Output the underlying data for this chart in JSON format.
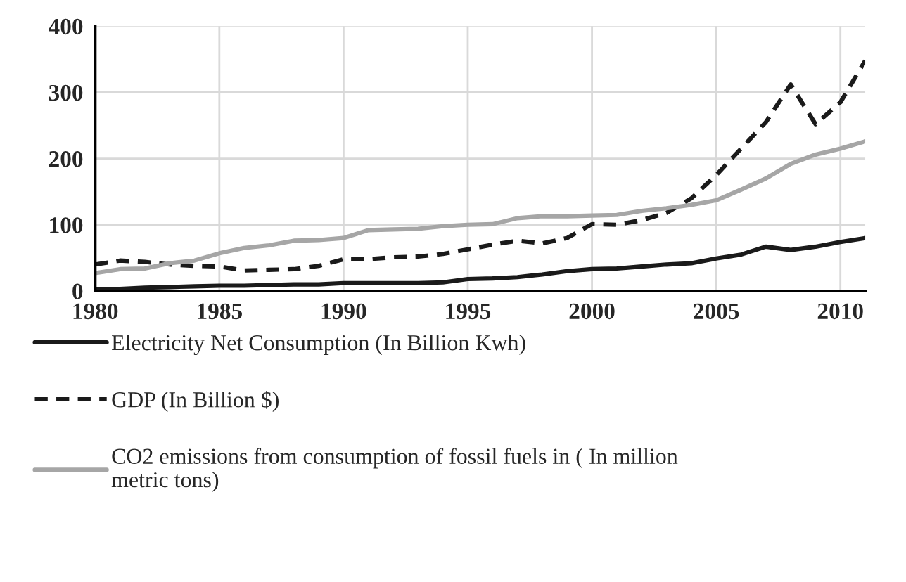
{
  "chart_data": {
    "type": "line",
    "x": [
      1980,
      1981,
      1982,
      1983,
      1984,
      1985,
      1986,
      1987,
      1988,
      1989,
      1990,
      1991,
      1992,
      1993,
      1994,
      1995,
      1996,
      1997,
      1998,
      1999,
      2000,
      2001,
      2002,
      2003,
      2004,
      2005,
      2006,
      2007,
      2008,
      2009,
      2010,
      2011
    ],
    "series": [
      {
        "name": "Electricity Net Consumption (In Billion Kwh)",
        "color": "#1a1a1a",
        "line_style": "solid",
        "values": [
          2,
          3,
          5,
          6,
          7,
          8,
          8,
          9,
          10,
          10,
          12,
          12,
          12,
          12,
          13,
          18,
          19,
          21,
          25,
          30,
          33,
          34,
          37,
          40,
          42,
          49,
          55,
          67,
          62,
          67,
          74,
          80
        ]
      },
      {
        "name": "GDP (In Billion $)",
        "color": "#1a1a1a",
        "line_style": "dashed",
        "values": [
          40,
          46,
          44,
          40,
          38,
          37,
          31,
          32,
          33,
          38,
          48,
          48,
          51,
          52,
          56,
          63,
          70,
          76,
          72,
          80,
          101,
          100,
          107,
          118,
          140,
          175,
          215,
          255,
          312,
          252,
          285,
          348
        ]
      },
      {
        "name": "CO2 emissions from consumption of fossil fuels in ( In million\nmetric tons)",
        "color": "#a6a6a6",
        "line_style": "solid",
        "values": [
          27,
          33,
          34,
          42,
          46,
          57,
          65,
          69,
          76,
          77,
          80,
          92,
          93,
          94,
          98,
          100,
          101,
          110,
          113,
          113,
          114,
          115,
          121,
          125,
          130,
          137,
          153,
          170,
          192,
          206,
          215,
          226
        ]
      }
    ],
    "xlim": [
      1980,
      2011
    ],
    "xticks": [
      1980,
      1985,
      1990,
      1995,
      2000,
      2005,
      2010
    ],
    "ylim": [
      0,
      400
    ],
    "yticks": [
      0,
      100,
      200,
      300,
      400
    ],
    "grid": true,
    "legend": "bottom"
  }
}
